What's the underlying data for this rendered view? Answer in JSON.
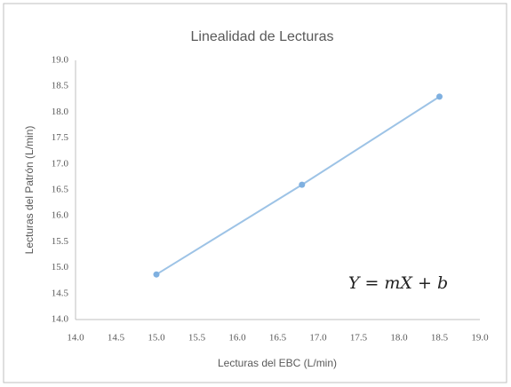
{
  "chart_data": {
    "type": "line",
    "title": "Linealidad de Lecturas",
    "x_label": "Lecturas del EBC (L/min)",
    "y_label": "Lecturas del Patrón (L/min)",
    "annotation": "Y = mX + b",
    "series": [
      {
        "color": "#9dc3e6",
        "marker_color": "#7fb0e0",
        "x": [
          15.0,
          16.8,
          18.5
        ],
        "values": [
          14.87,
          16.6,
          18.3
        ]
      }
    ],
    "xlim": [
      14,
      19
    ],
    "xticks": [
      {
        "value": 14,
        "label": "14.0"
      },
      {
        "value": 14.5,
        "label": "14.5"
      },
      {
        "value": 15,
        "label": "15.0"
      },
      {
        "value": 15.5,
        "label": "15.5"
      },
      {
        "value": 16,
        "label": "16.0"
      },
      {
        "value": 16.5,
        "label": "16.5"
      },
      {
        "value": 17,
        "label": "17.0"
      },
      {
        "value": 17.5,
        "label": "17.5"
      },
      {
        "value": 18,
        "label": "18.0"
      },
      {
        "value": 18.5,
        "label": "18.5"
      },
      {
        "value": 19,
        "label": "19.0"
      }
    ],
    "ylim": [
      14,
      19
    ],
    "yticks": [
      {
        "value": 14,
        "label": "14.0"
      },
      {
        "value": 14.5,
        "label": "14.5"
      },
      {
        "value": 15,
        "label": "15.0"
      },
      {
        "value": 15.5,
        "label": "15.5"
      },
      {
        "value": 16,
        "label": "16.0"
      },
      {
        "value": 16.5,
        "label": "16.5"
      },
      {
        "value": 17,
        "label": "17.0"
      },
      {
        "value": 17.5,
        "label": "17.5"
      },
      {
        "value": 18,
        "label": "18.0"
      },
      {
        "value": 18.5,
        "label": "18.5"
      },
      {
        "value": 19,
        "label": "19.0"
      }
    ],
    "grid": false
  }
}
